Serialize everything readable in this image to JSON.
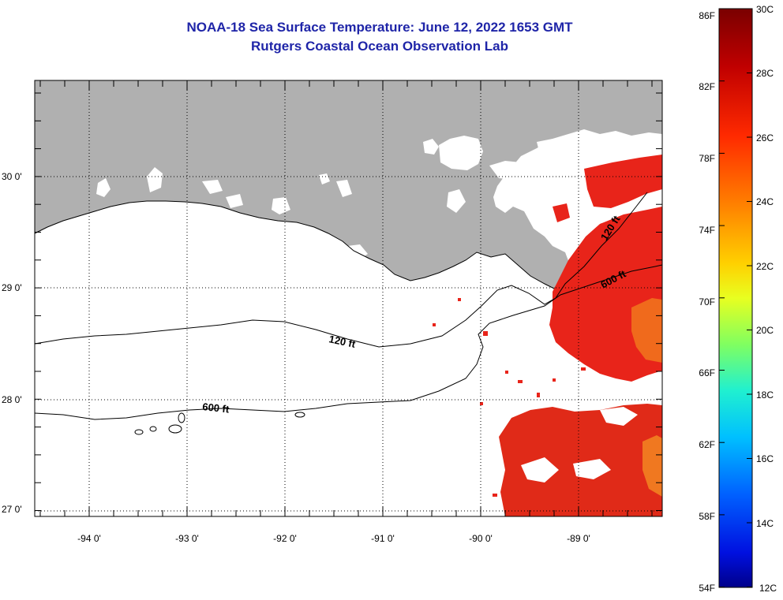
{
  "title": {
    "line1": "NOAA-18 Sea Surface Temperature:  June 12, 2022 1653 GMT",
    "line2": "Rutgers Coastal Ocean Observation Lab"
  },
  "map": {
    "lon_ticks": [
      "-94 0'",
      "-93 0'",
      "-92 0'",
      "-91 0'",
      "-90 0'",
      "-89 0'"
    ],
    "lat_ticks": [
      "30 0'",
      "29 0'",
      "28 0'",
      "27 0'"
    ],
    "contours": [
      "120 ft",
      "600 ft",
      "120 ft",
      "600 ft"
    ],
    "colors": {
      "land": "#b0b0b0",
      "ocean": "#ffffff",
      "warm_sst": "#e8241a",
      "hot_sst": "#f07820"
    }
  },
  "colorbar": {
    "fahrenheit": [
      "86F",
      "82F",
      "78F",
      "74F",
      "70F",
      "66F",
      "62F",
      "58F",
      "54F"
    ],
    "celsius": [
      "30C",
      "28C",
      "26C",
      "24C",
      "22C",
      "20C",
      "18C",
      "16C",
      "14C",
      "12C"
    ]
  }
}
